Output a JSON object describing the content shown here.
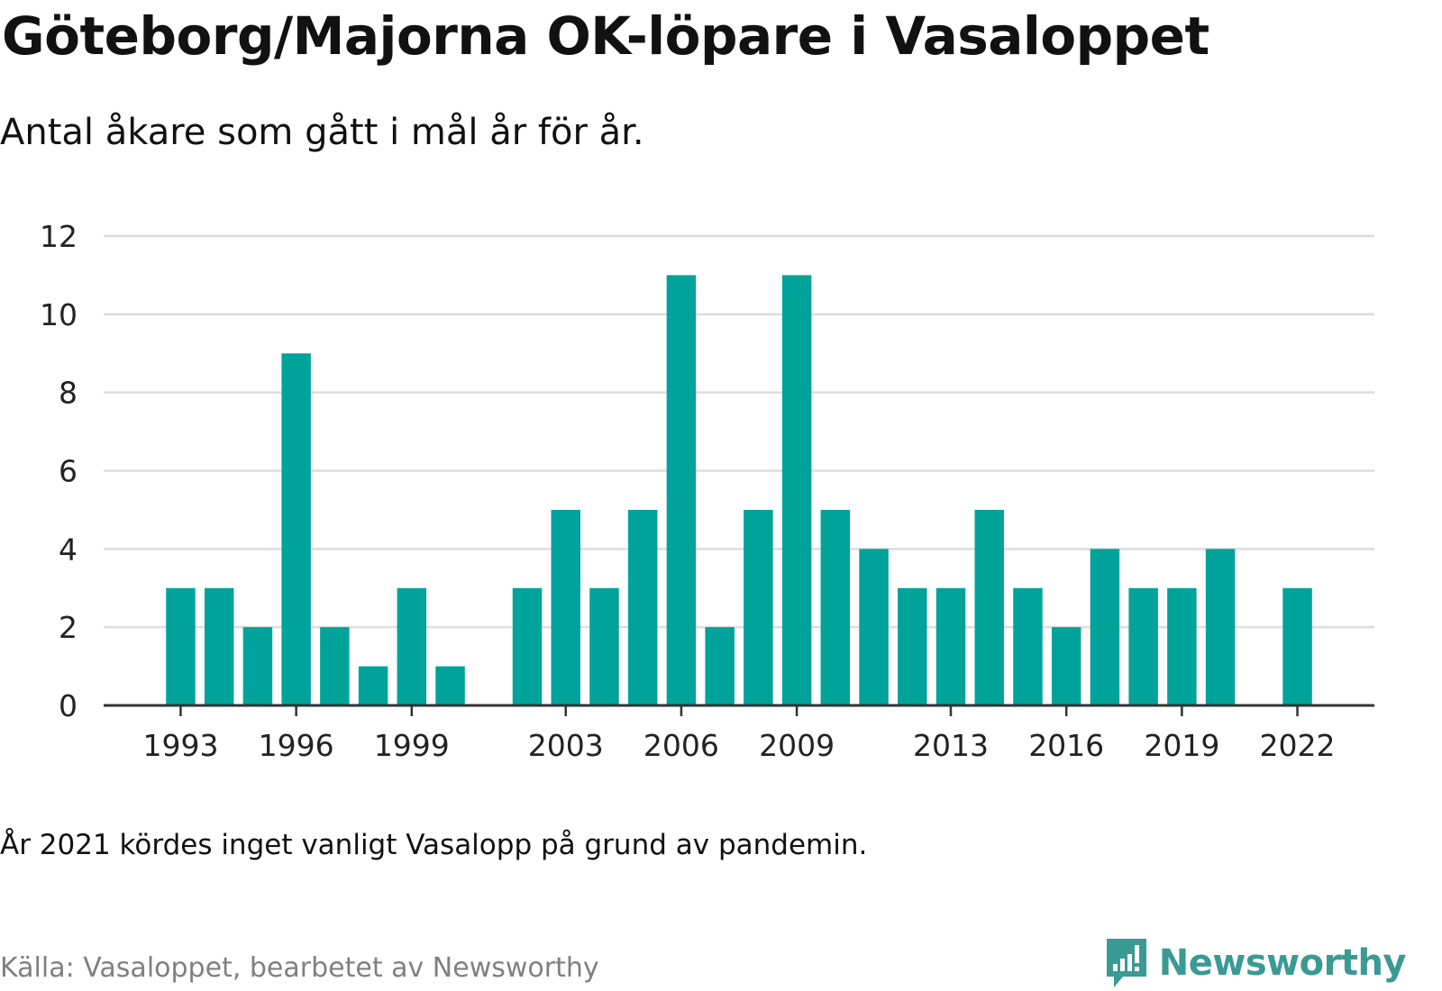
{
  "title": "Göteborg/Majorna OK-löpare i Vasaloppet",
  "subtitle": "Antal åkare som gått i mål år för år.",
  "note": "År 2021 kördes inget vanligt Vasalopp på grund av pandemin.",
  "source": "Källa: Vasaloppet, bearbetet av Newsworthy",
  "brand": {
    "name": "Newsworthy",
    "icon": "newsworthy-logo-icon"
  },
  "colors": {
    "bar": "#00a39a",
    "grid": "#dddddd",
    "axis": "#333333",
    "brand": "#3a9a94"
  },
  "chart_data": {
    "type": "bar",
    "x": [
      1993,
      1994,
      1995,
      1996,
      1997,
      1998,
      1999,
      2000,
      2001,
      2002,
      2003,
      2004,
      2005,
      2006,
      2007,
      2008,
      2009,
      2010,
      2011,
      2012,
      2013,
      2014,
      2015,
      2016,
      2017,
      2018,
      2019,
      2020,
      2021,
      2022
    ],
    "values": [
      3,
      3,
      2,
      9,
      2,
      1,
      3,
      1,
      null,
      3,
      5,
      3,
      5,
      11,
      2,
      5,
      11,
      5,
      4,
      3,
      3,
      5,
      3,
      2,
      4,
      3,
      3,
      4,
      null,
      3
    ],
    "xticks": [
      1993,
      1996,
      1999,
      2003,
      2006,
      2009,
      2013,
      2016,
      2019,
      2022
    ],
    "yticks": [
      0,
      2,
      4,
      6,
      8,
      10,
      12
    ],
    "ylim": [
      0,
      12
    ],
    "xlim": [
      1991,
      2024
    ],
    "grid": true,
    "legend": "none"
  }
}
